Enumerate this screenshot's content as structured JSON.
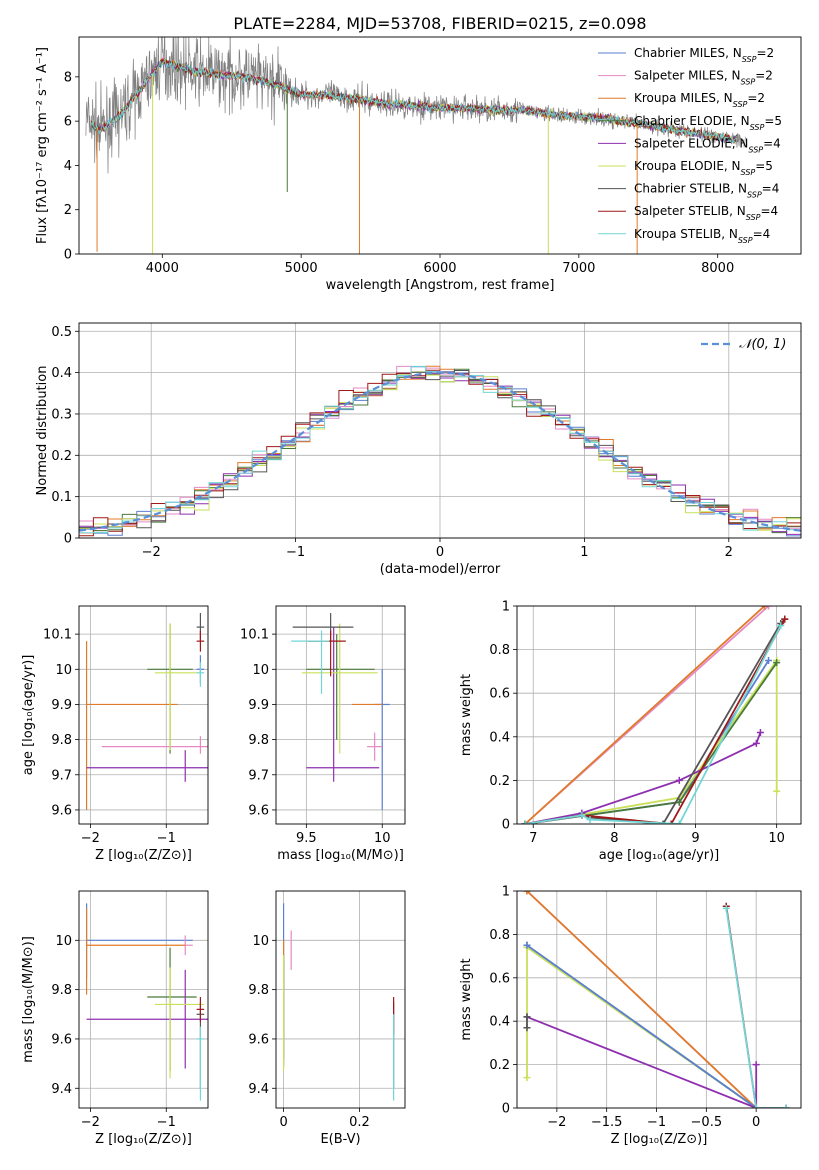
{
  "figure": {
    "title": "PLATE=2284, MJD=53708, FIBERID=0215, z=0.098"
  },
  "series": [
    {
      "name": "Chabrier MILES",
      "nssp": "2",
      "color": "#5b7fd1"
    },
    {
      "name": "Salpeter MILES",
      "nssp": "2",
      "color": "#e58ac6"
    },
    {
      "name": "Kroupa MILES",
      "nssp": "2",
      "color": "#e07b2a"
    },
    {
      "name": "Chabrier ELODIE",
      "nssp": "5",
      "color": "#4a7a3a"
    },
    {
      "name": "Salpeter ELODIE",
      "nssp": "4",
      "color": "#8e2fb0"
    },
    {
      "name": "Kroupa ELODIE",
      "nssp": "5",
      "color": "#c9e05a"
    },
    {
      "name": "Chabrier STELIB",
      "nssp": "4",
      "color": "#555555"
    },
    {
      "name": "Salpeter STELIB",
      "nssp": "4",
      "color": "#a01818"
    },
    {
      "name": "Kroupa STELIB",
      "nssp": "4",
      "color": "#72d6d6"
    }
  ],
  "chart_data": [
    {
      "id": "spectrum",
      "type": "line",
      "xlabel": "wavelength [Angstrom, rest frame]",
      "ylabel": "Flux [fλ10⁻¹⁷ erg cm⁻² s⁻¹ A⁻¹]",
      "xlim": [
        3400,
        8600
      ],
      "ylim": [
        0,
        9.8
      ],
      "xticks": [
        4000,
        5000,
        6000,
        7000,
        8000
      ],
      "yticks": [
        0,
        2,
        4,
        6,
        8
      ],
      "grid": false,
      "legend": "top-right",
      "data_color": "#808080",
      "continuum": {
        "x": [
          3450,
          3550,
          3700,
          3850,
          4000,
          4200,
          4400,
          4600,
          4800,
          5000,
          5200,
          5400,
          5600,
          5800,
          6000,
          6200,
          6400,
          6600,
          6800,
          7000,
          7200,
          7400,
          7600,
          7800,
          8000,
          8200
        ],
        "y": [
          6.1,
          5.6,
          6.3,
          7.5,
          8.7,
          8.3,
          8.1,
          8.0,
          7.7,
          7.2,
          7.2,
          7.0,
          6.8,
          6.7,
          6.6,
          6.6,
          6.5,
          6.5,
          6.3,
          6.2,
          6.1,
          5.9,
          5.7,
          5.5,
          5.3,
          5.1
        ]
      }
    },
    {
      "id": "residuals",
      "type": "bar",
      "xlabel": "(data-model)/error",
      "ylabel": "Normed distribution",
      "xlim": [
        -2.5,
        2.5
      ],
      "ylim": [
        0,
        0.52
      ],
      "xticks": [
        -2,
        -1,
        0,
        1,
        2
      ],
      "yticks": [
        0.0,
        0.1,
        0.2,
        0.3,
        0.4,
        0.5
      ],
      "grid": true,
      "legend": "top-right",
      "reference_label": "𝒩(0, 1)",
      "reference_color": "#5b8fd8"
    },
    {
      "id": "age-vs-Z",
      "type": "scatter",
      "xlabel": "Z [log₁₀(Z/Z⊙)]",
      "ylabel": "age  [log₁₀(age/yr)]",
      "xlim": [
        -2.15,
        -0.45
      ],
      "ylim": [
        9.56,
        10.18
      ],
      "xticks": [
        -2,
        -1
      ],
      "yticks": [
        9.6,
        9.7,
        9.8,
        9.9,
        10.0,
        10.1
      ],
      "grid": true,
      "points": [
        {
          "s": 0,
          "x": -0.55,
          "y": 10.0,
          "ex": [
            0.05,
            0.05
          ],
          "ey": [
            0.04,
            0.04
          ]
        },
        {
          "s": 1,
          "x": -0.55,
          "y": 9.78,
          "ex": [
            1.3,
            0.2
          ],
          "ey": [
            0.02,
            0.03
          ]
        },
        {
          "s": 2,
          "x": -2.05,
          "y": 9.9,
          "ex": [
            0.0,
            1.2
          ],
          "ey": [
            0.3,
            0.18
          ]
        },
        {
          "s": 3,
          "x": -0.95,
          "y": 10.0,
          "ex": [
            0.3,
            0.3
          ],
          "ey": [
            0.24,
            0.13
          ]
        },
        {
          "s": 4,
          "x": -0.75,
          "y": 9.72,
          "ex": [
            1.3,
            0.6
          ],
          "ey": [
            0.04,
            0.05
          ]
        },
        {
          "s": 5,
          "x": -0.95,
          "y": 9.99,
          "ex": [
            0.2,
            0.35
          ],
          "ey": [
            0.22,
            0.14
          ]
        },
        {
          "s": 6,
          "x": -0.55,
          "y": 10.12,
          "ex": [
            0.05,
            0.05
          ],
          "ey": [
            0.04,
            0.04
          ]
        },
        {
          "s": 7,
          "x": -0.55,
          "y": 10.08,
          "ex": [
            0.05,
            0.05
          ],
          "ey": [
            0.03,
            0.03
          ]
        },
        {
          "s": 8,
          "x": -0.55,
          "y": 9.99,
          "ex": [
            0.05,
            0.05
          ],
          "ey": [
            0.04,
            0.03
          ]
        }
      ]
    },
    {
      "id": "age-vs-mass",
      "type": "scatter",
      "xlabel": "mass [log₁₀(M/M⊙)]",
      "ylabel": "",
      "xlim": [
        9.3,
        10.15
      ],
      "ylim": [
        9.56,
        10.18
      ],
      "xticks": [
        9.5,
        10.0
      ],
      "yticks": [
        9.6,
        9.7,
        9.8,
        9.9,
        10.0,
        10.1
      ],
      "grid": true,
      "points": [
        {
          "s": 0,
          "x": 10.0,
          "y": 9.9,
          "ex": [
            0.05,
            0.05
          ],
          "ey": [
            0.3,
            0.1
          ]
        },
        {
          "s": 1,
          "x": 9.95,
          "y": 9.78,
          "ex": [
            0.05,
            0.05
          ],
          "ey": [
            0.04,
            0.04
          ]
        },
        {
          "s": 2,
          "x": 9.8,
          "y": 9.9,
          "ex": [
            0.0,
            0.2
          ],
          "ey": [
            0.0,
            0.0
          ]
        },
        {
          "s": 3,
          "x": 9.7,
          "y": 10.0,
          "ex": [
            0.2,
            0.25
          ],
          "ey": [
            0.2,
            0.1
          ]
        },
        {
          "s": 4,
          "x": 9.68,
          "y": 9.72,
          "ex": [
            0.18,
            0.3
          ],
          "ey": [
            0.04,
            0.4
          ]
        },
        {
          "s": 5,
          "x": 9.72,
          "y": 9.99,
          "ex": [
            0.25,
            0.25
          ],
          "ey": [
            0.23,
            0.14
          ]
        },
        {
          "s": 6,
          "x": 9.66,
          "y": 10.12,
          "ex": [
            0.25,
            0.15
          ],
          "ey": [
            0.04,
            0.04
          ]
        },
        {
          "s": 7,
          "x": 9.66,
          "y": 10.08,
          "ex": [
            0.15,
            0.1
          ],
          "ey": [
            0.1,
            0.03
          ]
        },
        {
          "s": 8,
          "x": 9.6,
          "y": 10.08,
          "ex": [
            0.2,
            0.05
          ],
          "ey": [
            0.15,
            0.03
          ]
        }
      ]
    },
    {
      "id": "massweight-vs-age",
      "type": "line",
      "xlabel": "age  [log₁₀(age/yr)]",
      "ylabel": "mass weight",
      "xlim": [
        6.8,
        10.3
      ],
      "ylim": [
        0,
        1.0
      ],
      "xticks": [
        7,
        8,
        9,
        10
      ],
      "yticks": [
        0.0,
        0.2,
        0.4,
        0.6,
        0.8,
        1.0
      ],
      "grid": true,
      "lines": [
        {
          "s": 1,
          "x": [
            6.9,
            9.9
          ],
          "y": [
            0.0,
            1.0
          ]
        },
        {
          "s": 2,
          "x": [
            6.9,
            9.85
          ],
          "y": [
            0.0,
            1.0
          ]
        },
        {
          "s": 0,
          "x": [
            6.9,
            8.8,
            9.9
          ],
          "y": [
            0.0,
            0.1,
            0.75
          ]
        },
        {
          "s": 5,
          "x": [
            6.9,
            8.8,
            10.0,
            10.0
          ],
          "y": [
            0.0,
            0.12,
            0.75,
            0.15
          ]
        },
        {
          "s": 3,
          "x": [
            6.9,
            8.8,
            10.0
          ],
          "y": [
            0.0,
            0.1,
            0.74
          ]
        },
        {
          "s": 4,
          "x": [
            6.9,
            7.6,
            8.8,
            9.75,
            9.8
          ],
          "y": [
            0.0,
            0.05,
            0.2,
            0.37,
            0.42
          ]
        },
        {
          "s": 6,
          "x": [
            6.9,
            7.6,
            7.7,
            8.6,
            10.05,
            10.1
          ],
          "y": [
            0.0,
            0.04,
            0.03,
            0.0,
            0.92,
            0.94
          ]
        },
        {
          "s": 7,
          "x": [
            6.9,
            7.6,
            8.7,
            10.1
          ],
          "y": [
            0.0,
            0.04,
            0.0,
            0.94
          ]
        },
        {
          "s": 8,
          "x": [
            6.9,
            7.6,
            7.7,
            8.8,
            10.05
          ],
          "y": [
            0.0,
            0.04,
            0.02,
            0.0,
            0.91
          ]
        }
      ]
    },
    {
      "id": "mass-vs-Z",
      "type": "scatter",
      "xlabel": "Z [log₁₀(Z/Z⊙)]",
      "ylabel": "mass [log₁₀(M/M⊙)]",
      "xlim": [
        -2.15,
        -0.45
      ],
      "ylim": [
        9.32,
        10.2
      ],
      "xticks": [
        -2,
        -1
      ],
      "yticks": [
        9.4,
        9.6,
        9.8,
        10.0
      ],
      "grid": true,
      "points": [
        {
          "s": 0,
          "x": -2.05,
          "y": 10.0,
          "ex": [
            0.0,
            1.4
          ],
          "ey": [
            0.15,
            0.15
          ]
        },
        {
          "s": 1,
          "x": -0.75,
          "y": 9.98,
          "ex": [
            0.0,
            0.1
          ],
          "ey": [
            0.04,
            0.04
          ]
        },
        {
          "s": 2,
          "x": -2.05,
          "y": 9.98,
          "ex": [
            0.0,
            1.3
          ],
          "ey": [
            0.2,
            0.15
          ]
        },
        {
          "s": 3,
          "x": -0.95,
          "y": 9.77,
          "ex": [
            0.3,
            0.35
          ],
          "ey": [
            0.3,
            0.2
          ]
        },
        {
          "s": 4,
          "x": -0.75,
          "y": 9.68,
          "ex": [
            1.3,
            0.6
          ],
          "ey": [
            0.2,
            0.2
          ]
        },
        {
          "s": 5,
          "x": -0.95,
          "y": 9.74,
          "ex": [
            0.2,
            0.45
          ],
          "ey": [
            0.3,
            0.15
          ]
        },
        {
          "s": 6,
          "x": -0.55,
          "y": 9.7,
          "ex": [
            0.05,
            0.05
          ],
          "ey": [
            0.3,
            0.05
          ]
        },
        {
          "s": 7,
          "x": -0.55,
          "y": 9.72,
          "ex": [
            0.05,
            0.05
          ],
          "ey": [
            0.05,
            0.05
          ]
        },
        {
          "s": 8,
          "x": -0.55,
          "y": 9.6,
          "ex": [
            0.05,
            0.05
          ],
          "ey": [
            0.25,
            0.05
          ]
        }
      ]
    },
    {
      "id": "mass-vs-ebv",
      "type": "scatter",
      "xlabel": "E(B-V)",
      "ylabel": "",
      "xlim": [
        -0.02,
        0.32
      ],
      "ylim": [
        9.32,
        10.2
      ],
      "xticks": [
        0.0,
        0.2
      ],
      "yticks": [
        9.4,
        9.6,
        9.8,
        10.0
      ],
      "grid": true,
      "points": [
        {
          "s": 0,
          "x": 0.0,
          "y": 10.0,
          "ex": [
            0,
            0
          ],
          "ey": [
            0.2,
            0.15
          ]
        },
        {
          "s": 1,
          "x": 0.02,
          "y": 9.98,
          "ex": [
            0,
            0
          ],
          "ey": [
            0.1,
            0.06
          ]
        },
        {
          "s": 2,
          "x": 0.0,
          "y": 9.95,
          "ex": [
            0,
            0
          ],
          "ey": [
            0.05,
            0.05
          ]
        },
        {
          "s": 3,
          "x": 0.0,
          "y": 9.74,
          "ex": [
            0,
            0
          ],
          "ey": [
            0.25,
            0.2
          ]
        },
        {
          "s": 4,
          "x": 0.0,
          "y": 9.72,
          "ex": [
            0,
            0
          ],
          "ey": [
            0.2,
            0.2
          ]
        },
        {
          "s": 5,
          "x": 0.0,
          "y": 9.74,
          "ex": [
            0,
            0
          ],
          "ey": [
            0.27,
            0.2
          ]
        },
        {
          "s": 6,
          "x": 0.29,
          "y": 9.7,
          "ex": [
            0,
            0
          ],
          "ey": [
            0.3,
            0.05
          ]
        },
        {
          "s": 7,
          "x": 0.29,
          "y": 9.72,
          "ex": [
            0,
            0
          ],
          "ey": [
            0.1,
            0.05
          ]
        },
        {
          "s": 8,
          "x": 0.29,
          "y": 9.55,
          "ex": [
            0,
            0
          ],
          "ey": [
            0.2,
            0.15
          ]
        }
      ]
    },
    {
      "id": "massweight-vs-Z",
      "type": "line",
      "xlabel": "Z [log₁₀(Z/Z⊙)]",
      "ylabel": "mass weight",
      "xlim": [
        -2.4,
        0.45
      ],
      "ylim": [
        0,
        1.0
      ],
      "xticks": [
        -2.0,
        -1.5,
        -1.0,
        -0.5,
        0.0
      ],
      "yticks": [
        0.0,
        0.2,
        0.4,
        0.6,
        0.8,
        1.0
      ],
      "grid": true,
      "lines": [
        {
          "s": 1,
          "x": [
            -2.3,
            0.0
          ],
          "y": [
            1.0,
            0.0
          ]
        },
        {
          "s": 2,
          "x": [
            -2.3,
            0.0
          ],
          "y": [
            1.0,
            0.0
          ]
        },
        {
          "s": 3,
          "x": [
            -2.3,
            0.0
          ],
          "y": [
            0.75,
            0.0
          ]
        },
        {
          "s": 5,
          "x": [
            -2.3,
            -2.3,
            0.0
          ],
          "y": [
            0.14,
            0.74,
            0.0
          ]
        },
        {
          "s": 0,
          "x": [
            -2.3,
            0.0
          ],
          "y": [
            0.75,
            0.0
          ]
        },
        {
          "s": 4,
          "x": [
            -2.3,
            0.0,
            0.0
          ],
          "y": [
            0.42,
            0.0,
            0.2
          ]
        },
        {
          "s": 6,
          "x": [
            -2.3,
            -2.3
          ],
          "y": [
            0.37,
            0.42
          ]
        },
        {
          "s": 7,
          "x": [
            -0.3,
            0.0,
            0.3
          ],
          "y": [
            0.93,
            0.0,
            0.0
          ]
        },
        {
          "s": 8,
          "x": [
            -0.3,
            0.0,
            0.3
          ],
          "y": [
            0.92,
            0.0,
            0.0
          ]
        }
      ]
    }
  ]
}
